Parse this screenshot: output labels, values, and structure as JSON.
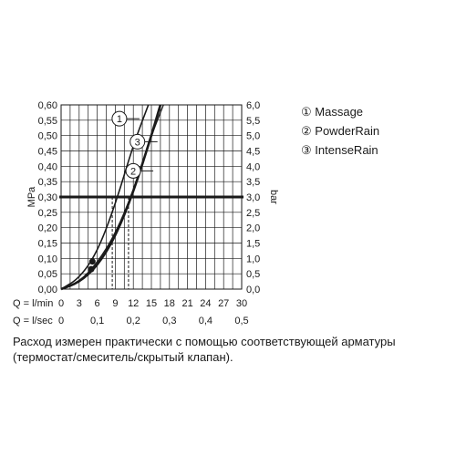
{
  "chart_data": {
    "type": "line",
    "title": "",
    "y_left": {
      "label": "MPa",
      "ticks": [
        "0,00",
        "0,05",
        "0,10",
        "0,15",
        "0,20",
        "0,25",
        "0,30",
        "0,35",
        "0,40",
        "0,45",
        "0,50",
        "0,55",
        "0,60"
      ],
      "range": [
        0,
        0.6
      ]
    },
    "y_right": {
      "label": "bar",
      "ticks": [
        "0,0",
        "0,5",
        "1,0",
        "1,5",
        "2,0",
        "2,5",
        "3,0",
        "3,5",
        "4,0",
        "4,5",
        "5,0",
        "5,5",
        "6,0"
      ],
      "range": [
        0,
        6
      ]
    },
    "x_lmin": {
      "label": "Q = l/min",
      "ticks": [
        "0",
        "3",
        "6",
        "9",
        "12",
        "15",
        "18",
        "21",
        "24",
        "27",
        "30"
      ],
      "range": [
        0,
        30
      ]
    },
    "x_lsec": {
      "label": "Q = l/sec",
      "ticks": [
        "0",
        "0,1",
        "0,2",
        "0,3",
        "0,4",
        "0,5"
      ],
      "range": [
        0,
        0.5
      ]
    },
    "reference_line_mpa": 0.3,
    "grid": true,
    "series": [
      {
        "name": "Massage",
        "marker": "1",
        "x": [
          0,
          3,
          6,
          9,
          12,
          14.5
        ],
        "y": [
          0,
          0.035,
          0.12,
          0.275,
          0.47,
          0.6
        ]
      },
      {
        "name": "PowderRain",
        "marker": "2",
        "x": [
          0,
          3,
          6,
          9,
          12,
          15,
          16.5
        ],
        "y": [
          0,
          0.022,
          0.075,
          0.17,
          0.315,
          0.5,
          0.6
        ]
      },
      {
        "name": "IntenseRain",
        "marker": "3",
        "x": [
          0,
          3,
          6,
          9,
          12,
          15,
          17
        ],
        "y": [
          0,
          0.024,
          0.085,
          0.18,
          0.32,
          0.5,
          0.6
        ]
      }
    ],
    "dashed_markers_lmin": [
      8.5,
      11.2
    ],
    "callouts": [
      {
        "marker": "1",
        "at_x": 11.5,
        "at_y": 0.555
      },
      {
        "marker": "3",
        "at_x": 14.5,
        "at_y": 0.48
      },
      {
        "marker": "2",
        "at_x": 13.8,
        "at_y": 0.385
      }
    ],
    "legend_position": "right"
  },
  "legend": {
    "items": [
      {
        "marker": "①",
        "label": "Massage"
      },
      {
        "marker": "②",
        "label": "PowderRain"
      },
      {
        "marker": "③",
        "label": "IntenseRain"
      }
    ]
  },
  "caption": "Расход измерен практически с помощью соответствующей арматуры (термостат/смеситель/скрытый клапан)."
}
